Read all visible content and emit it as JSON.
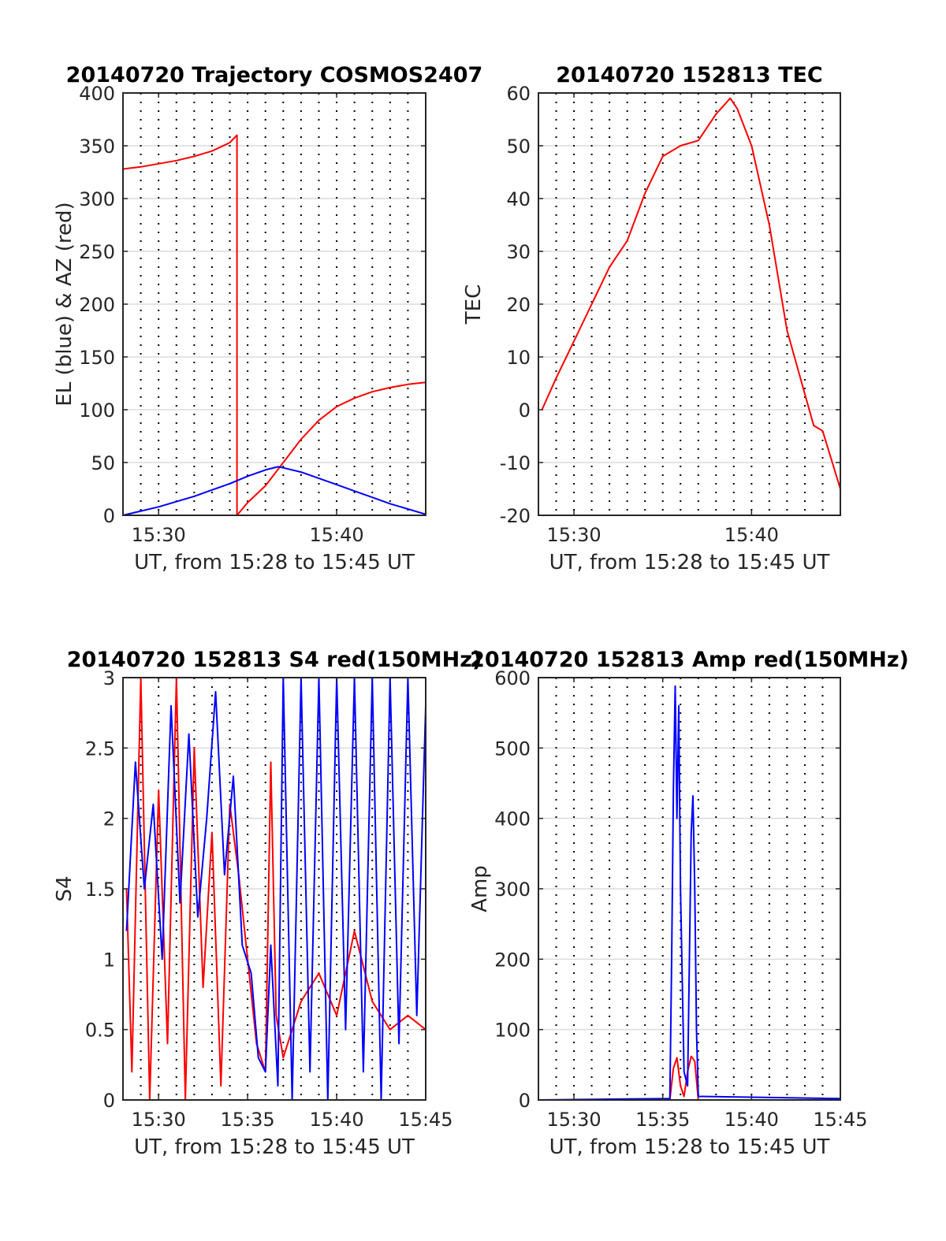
{
  "chart_data": [
    {
      "type": "line",
      "title": "20140720 Trajectory COSMOS2407",
      "xlabel": "UT, from 15:28 to 15:45 UT",
      "ylabel": "EL (blue) & AZ (red)",
      "xlim": [
        "15:28",
        "15:45"
      ],
      "ylim": [
        0,
        400
      ],
      "xticks": [
        "15:30",
        "15:40"
      ],
      "yticks": [
        0,
        50,
        100,
        150,
        200,
        250,
        300,
        350,
        400
      ],
      "grid": true,
      "vertical_dotted_lines": [
        "15:29",
        "15:30",
        "15:31",
        "15:32",
        "15:33",
        "15:34",
        "15:35",
        "15:36",
        "15:37",
        "15:38",
        "15:39",
        "15:40",
        "15:41",
        "15:42",
        "15:43",
        "15:44"
      ],
      "series": [
        {
          "color": "#ff0000",
          "x": [
            "15:28",
            "15:29",
            "15:30",
            "15:31",
            "15:32",
            "15:33",
            "15:34",
            "15:34.4",
            "15:34.4",
            "15:35",
            "15:36",
            "15:37",
            "15:38",
            "15:39",
            "15:40",
            "15:41",
            "15:42",
            "15:43",
            "15:44",
            "15:45"
          ],
          "values": [
            328,
            330,
            333,
            336,
            340,
            345,
            353,
            360,
            0,
            12,
            28,
            50,
            72,
            90,
            103,
            111,
            117,
            121,
            124,
            126
          ]
        },
        {
          "color": "#0000ff",
          "x": [
            "15:28",
            "15:29",
            "15:30",
            "15:31",
            "15:32",
            "15:33",
            "15:34",
            "15:35",
            "15:36",
            "15:36.7",
            "15:37",
            "15:38",
            "15:39",
            "15:40",
            "15:41",
            "15:42",
            "15:43",
            "15:44",
            "15:45"
          ],
          "values": [
            0,
            4,
            8,
            13,
            18,
            24,
            30,
            37,
            43,
            46,
            45,
            41,
            35,
            29,
            23,
            17,
            11,
            6,
            1
          ]
        }
      ]
    },
    {
      "type": "line",
      "title": "20140720 152813 TEC",
      "xlabel": "UT, from 15:28 to 15:45 UT",
      "ylabel": "TEC",
      "xlim": [
        "15:28",
        "15:45"
      ],
      "ylim": [
        -20,
        60
      ],
      "xticks": [
        "15:30",
        "15:40"
      ],
      "yticks": [
        -20,
        -10,
        0,
        10,
        20,
        30,
        40,
        50,
        60
      ],
      "grid": true,
      "vertical_dotted_lines": [
        "15:29",
        "15:30",
        "15:31",
        "15:32",
        "15:33",
        "15:34",
        "15:35",
        "15:36",
        "15:37",
        "15:38",
        "15:39",
        "15:40",
        "15:41",
        "15:42",
        "15:43",
        "15:44"
      ],
      "series": [
        {
          "color": "#ff0000",
          "x": [
            "15:28.2",
            "15:29",
            "15:30",
            "15:31",
            "15:32",
            "15:33",
            "15:34",
            "15:35",
            "15:36",
            "15:37",
            "15:38",
            "15:38.8",
            "15:39.2",
            "15:40",
            "15:41",
            "15:42",
            "15:43",
            "15:43.5",
            "15:44",
            "15:45"
          ],
          "values": [
            0,
            6,
            13,
            20,
            27,
            32,
            41,
            48,
            50,
            51,
            56,
            59,
            57,
            50,
            35,
            15,
            3,
            -3,
            -4,
            -15
          ]
        }
      ]
    },
    {
      "type": "line",
      "title": "20140720 152813 S4 red(150MHz)",
      "xlabel": "UT, from 15:28 to 15:45 UT",
      "ylabel": "S4",
      "xlim": [
        "15:28",
        "15:45"
      ],
      "ylim": [
        0,
        3
      ],
      "xticks": [
        "15:30",
        "15:35",
        "15:40",
        "15:45"
      ],
      "yticks": [
        0,
        0.5,
        1,
        1.5,
        2,
        2.5,
        3
      ],
      "grid": true,
      "vertical_dotted_lines": [
        "15:29",
        "15:30",
        "15:31",
        "15:32",
        "15:33",
        "15:34",
        "15:35",
        "15:36",
        "15:37",
        "15:38",
        "15:39",
        "15:40",
        "15:41",
        "15:42",
        "15:43",
        "15:44"
      ],
      "series": [
        {
          "color": "#ff0000",
          "x": [
            "15:28.2",
            "15:28.5",
            "15:29",
            "15:29.5",
            "15:30",
            "15:30.5",
            "15:31",
            "15:31.5",
            "15:32",
            "15:32.5",
            "15:33",
            "15:33.5",
            "15:34",
            "15:34.5",
            "15:35",
            "15:35.5",
            "15:36",
            "15:36.3",
            "15:36.6",
            "15:37",
            "15:38",
            "15:39",
            "15:40",
            "15:41",
            "15:42",
            "15:43",
            "15:44",
            "15:45"
          ],
          "values": [
            1.5,
            0.2,
            3,
            0,
            2.2,
            0.4,
            3,
            0,
            2.5,
            0.8,
            1.9,
            0.1,
            2.1,
            1.6,
            1.0,
            0.4,
            0.2,
            2.4,
            0.6,
            0.3,
            0.7,
            0.9,
            0.6,
            1.2,
            0.7,
            0.5,
            0.6,
            0.5
          ]
        },
        {
          "color": "#0000ff",
          "x": [
            "15:28.2",
            "15:28.7",
            "15:29.2",
            "15:29.7",
            "15:30.2",
            "15:30.7",
            "15:31.2",
            "15:31.7",
            "15:32.2",
            "15:32.7",
            "15:33.2",
            "15:33.7",
            "15:34.2",
            "15:34.7",
            "15:35.2",
            "15:35.6",
            "15:36",
            "15:36.3",
            "15:36.7",
            "15:37",
            "15:37.5",
            "15:38",
            "15:38.5",
            "15:39",
            "15:39.5",
            "15:40",
            "15:40.5",
            "15:41",
            "15:41.5",
            "15:42",
            "15:42.5",
            "15:43",
            "15:43.5",
            "15:44",
            "15:44.5",
            "15:45"
          ],
          "values": [
            1.2,
            2.4,
            1.5,
            2.1,
            1.0,
            2.8,
            1.4,
            2.6,
            1.3,
            2.0,
            2.9,
            1.6,
            2.3,
            1.1,
            0.9,
            0.3,
            0.2,
            1.1,
            0.1,
            3,
            0,
            3,
            0.2,
            3,
            0,
            3,
            0.5,
            3,
            0.2,
            3,
            0,
            3,
            0.4,
            3,
            0.6,
            2.8
          ]
        }
      ]
    },
    {
      "type": "line",
      "title": "20140720 152813 Amp red(150MHz)",
      "xlabel": "UT, from 15:28 to 15:45 UT",
      "ylabel": "Amp",
      "xlim": [
        "15:28",
        "15:45"
      ],
      "ylim": [
        0,
        600
      ],
      "xticks": [
        "15:30",
        "15:35",
        "15:40",
        "15:45"
      ],
      "yticks": [
        0,
        100,
        200,
        300,
        400,
        500,
        600
      ],
      "grid": true,
      "vertical_dotted_lines": [
        "15:29",
        "15:30",
        "15:31",
        "15:32",
        "15:33",
        "15:34",
        "15:35",
        "15:36",
        "15:37",
        "15:38",
        "15:39",
        "15:40",
        "15:41",
        "15:42",
        "15:43",
        "15:44"
      ],
      "series": [
        {
          "color": "#ff0000",
          "x": [
            "15:28",
            "15:35.4",
            "15:35.6",
            "15:35.8",
            "15:36",
            "15:36.2",
            "15:36.4",
            "15:36.6",
            "15:36.8",
            "15:37",
            "15:45"
          ],
          "values": [
            0,
            0,
            45,
            60,
            20,
            5,
            40,
            62,
            55,
            0,
            0
          ]
        },
        {
          "color": "#0000ff",
          "x": [
            "15:28",
            "15:35.4",
            "15:35.5",
            "15:35.6",
            "15:35.7",
            "15:35.8",
            "15:35.9",
            "15:36",
            "15:36.2",
            "15:36.4",
            "15:36.5",
            "15:36.6",
            "15:36.7",
            "15:36.8",
            "15:36.9",
            "15:37",
            "15:45"
          ],
          "values": [
            0,
            2,
            200,
            440,
            588,
            400,
            560,
            300,
            40,
            20,
            200,
            380,
            432,
            300,
            100,
            5,
            2
          ]
        }
      ]
    }
  ]
}
